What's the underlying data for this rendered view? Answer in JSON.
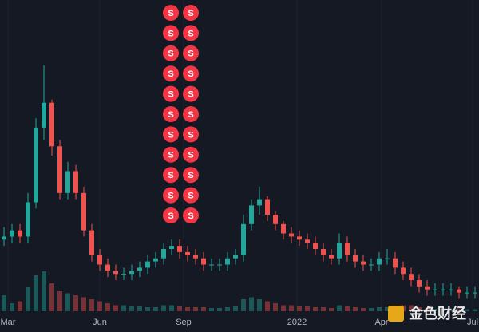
{
  "chart_data": {
    "type": "candlestick",
    "x": [
      0,
      1,
      2,
      3,
      4,
      5,
      6,
      7,
      8,
      9,
      10,
      11,
      12,
      13,
      14,
      15,
      16,
      17,
      18,
      19,
      20,
      21,
      22,
      23,
      24,
      25,
      26,
      27,
      28,
      29,
      30,
      31,
      32,
      33,
      34,
      35,
      36,
      37,
      38,
      39,
      40,
      41,
      42,
      43,
      44,
      45,
      46,
      47,
      48,
      49,
      50,
      51,
      52,
      53,
      54,
      55,
      56,
      57,
      58,
      59
    ],
    "open": [
      23,
      24,
      26,
      24,
      35,
      59,
      67,
      53,
      38,
      45,
      38,
      26,
      18,
      15,
      13,
      12,
      12,
      13,
      14,
      16,
      17,
      20,
      21,
      19,
      18,
      17,
      15,
      15,
      15,
      17,
      18,
      28,
      34,
      36,
      31,
      28,
      25,
      24,
      23,
      22,
      20,
      18,
      17,
      22,
      18,
      16,
      15,
      15,
      17,
      17,
      14,
      12,
      10,
      8,
      7,
      7,
      7,
      7,
      6,
      6
    ],
    "high": [
      27,
      28,
      28,
      38,
      62,
      79,
      68,
      55,
      48,
      47,
      40,
      28,
      20,
      17,
      15,
      14,
      15,
      16,
      18,
      19,
      22,
      23,
      23,
      21,
      20,
      19,
      17,
      17,
      19,
      20,
      31,
      36,
      40,
      37,
      32,
      29,
      27,
      26,
      25,
      24,
      22,
      20,
      25,
      24,
      20,
      18,
      17,
      19,
      20,
      19,
      16,
      14,
      12,
      10,
      9,
      9,
      9,
      8,
      8,
      8
    ],
    "low": [
      21,
      22,
      22,
      22,
      33,
      55,
      50,
      36,
      36,
      36,
      24,
      16,
      13,
      11,
      10,
      10,
      10,
      11,
      12,
      14,
      15,
      18,
      17,
      16,
      15,
      13,
      13,
      13,
      13,
      15,
      16,
      26,
      31,
      29,
      26,
      23,
      22,
      21,
      20,
      18,
      16,
      15,
      15,
      16,
      14,
      13,
      13,
      13,
      15,
      12,
      10,
      8,
      6,
      5,
      5,
      5,
      5,
      4,
      4,
      4
    ],
    "close": [
      24,
      26,
      24,
      35,
      59,
      67,
      53,
      38,
      45,
      38,
      26,
      18,
      15,
      13,
      12,
      12,
      13,
      14,
      16,
      17,
      20,
      21,
      19,
      18,
      17,
      15,
      15,
      15,
      17,
      18,
      28,
      34,
      36,
      31,
      28,
      25,
      24,
      23,
      22,
      20,
      18,
      17,
      22,
      18,
      16,
      15,
      15,
      17,
      17,
      14,
      12,
      10,
      8,
      7,
      7,
      7,
      7,
      6,
      6,
      6
    ],
    "volume": [
      40,
      20,
      25,
      60,
      90,
      100,
      70,
      50,
      45,
      40,
      35,
      30,
      25,
      20,
      15,
      15,
      12,
      12,
      10,
      10,
      15,
      15,
      12,
      10,
      10,
      10,
      8,
      8,
      10,
      12,
      30,
      35,
      30,
      25,
      20,
      15,
      15,
      12,
      12,
      10,
      10,
      8,
      15,
      12,
      10,
      8,
      8,
      10,
      10,
      12,
      15,
      15,
      10,
      8,
      6,
      6,
      5,
      5,
      5,
      5
    ],
    "up_color": "#26a69a",
    "down_color": "#ef5350",
    "xlim": [
      -0.5,
      59.5
    ],
    "ylim": [
      0,
      100
    ],
    "volume_lim": [
      0,
      100
    ],
    "xticks": [
      {
        "value": 0.5,
        "label": "Mar"
      },
      {
        "value": 12,
        "label": "Jun"
      },
      {
        "value": 22.5,
        "label": "Sep"
      },
      {
        "value": 36.7,
        "label": "2022"
      },
      {
        "value": 47.3,
        "label": "Apr"
      },
      {
        "value": 58.7,
        "label": "Jul"
      }
    ],
    "grid": true,
    "markers": [
      "S",
      "S",
      "S",
      "S",
      "S",
      "S",
      "S",
      "S",
      "S",
      "S",
      "S",
      "S",
      "S",
      "S",
      "S",
      "S",
      "S",
      "S",
      "S",
      "S",
      "S",
      "S"
    ],
    "marker_color": "#f23645",
    "watermark": "金色财经"
  }
}
